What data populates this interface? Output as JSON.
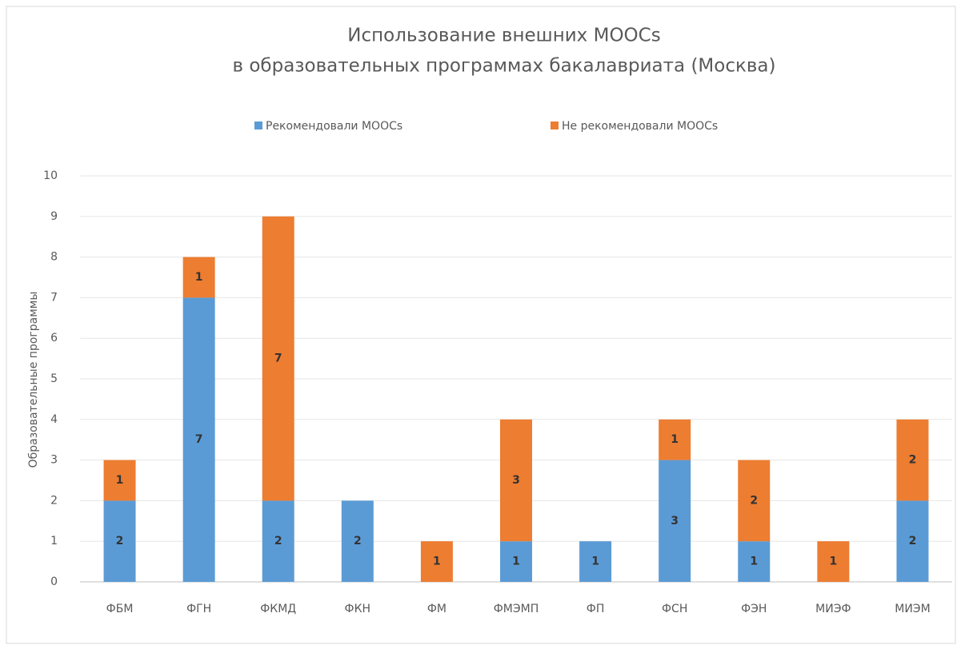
{
  "chart_data": {
    "type": "stacked_bar",
    "title": [
      "Использование внешних MOOCs",
      "в образовательных программах бакалавриата (Москва)"
    ],
    "y_label": "Образовательные программы",
    "categories": [
      "ФБМ",
      "ФГН",
      "ФКМД",
      "ФКН",
      "ФМ",
      "ФМЭМП",
      "ФП",
      "ФСН",
      "ФЭН",
      "МИЭФ",
      "МИЭМ"
    ],
    "series": [
      {
        "name": "Рекомендовали MOOCs",
        "color": "#5b9bd5",
        "values": [
          2,
          7,
          2,
          2,
          null,
          1,
          1,
          3,
          1,
          null,
          2
        ]
      },
      {
        "name": "Не рекомендовали MOOCs",
        "color": "#ed7d31",
        "values": [
          1,
          1,
          7,
          null,
          1,
          3,
          null,
          1,
          2,
          1,
          2
        ]
      }
    ],
    "ylim": [
      0,
      10
    ],
    "yticks": [
      0,
      1,
      2,
      3,
      4,
      5,
      6,
      7,
      8,
      9,
      10
    ],
    "grid": true,
    "legend": "top"
  }
}
